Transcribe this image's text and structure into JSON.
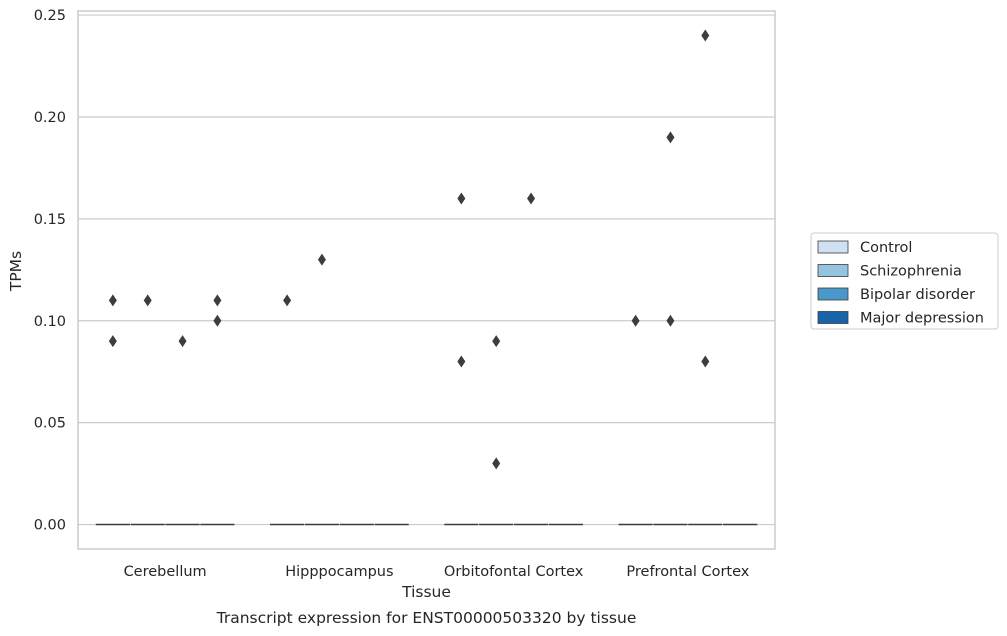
{
  "chart_data": {
    "type": "box",
    "caption": "Transcript expression for ENST00000503320 by tissue",
    "xlabel": "Tissue",
    "ylabel": "TPMs",
    "ylim": [
      -0.012,
      0.252
    ],
    "yticks": [
      0.0,
      0.05,
      0.1,
      0.15,
      0.2,
      0.25
    ],
    "ytick_labels": [
      "0.00",
      "0.05",
      "0.10",
      "0.15",
      "0.20",
      "0.25"
    ],
    "grid": true,
    "legend_position": "right",
    "categories": [
      "Cerebellum",
      "Hipppocampus",
      "Orbitofontal Cortex",
      "Prefrontal Cortex"
    ],
    "series": [
      {
        "name": "Control",
        "color": "#d0e1f2",
        "boxes": [
          {
            "category": "Cerebellum",
            "median": 0.0,
            "q1": 0.0,
            "q3": 0.0,
            "whisker_low": 0.0,
            "whisker_high": 0.0,
            "outliers": [
              0.09,
              0.11
            ]
          },
          {
            "category": "Hipppocampus",
            "median": 0.0,
            "q1": 0.0,
            "q3": 0.0,
            "whisker_low": 0.0,
            "whisker_high": 0.0,
            "outliers": [
              0.11
            ]
          },
          {
            "category": "Orbitofontal Cortex",
            "median": 0.0,
            "q1": 0.0,
            "q3": 0.0,
            "whisker_low": 0.0,
            "whisker_high": 0.0,
            "outliers": [
              0.08,
              0.16
            ]
          },
          {
            "category": "Prefrontal Cortex",
            "median": 0.0,
            "q1": 0.0,
            "q3": 0.0,
            "whisker_low": 0.0,
            "whisker_high": 0.0,
            "outliers": [
              0.1
            ]
          }
        ]
      },
      {
        "name": "Schizophrenia",
        "color": "#94c4df",
        "boxes": [
          {
            "category": "Cerebellum",
            "median": 0.0,
            "q1": 0.0,
            "q3": 0.0,
            "whisker_low": 0.0,
            "whisker_high": 0.0,
            "outliers": [
              0.11
            ]
          },
          {
            "category": "Hipppocampus",
            "median": 0.0,
            "q1": 0.0,
            "q3": 0.0,
            "whisker_low": 0.0,
            "whisker_high": 0.0,
            "outliers": [
              0.13
            ]
          },
          {
            "category": "Orbitofontal Cortex",
            "median": 0.0,
            "q1": 0.0,
            "q3": 0.0,
            "whisker_low": 0.0,
            "whisker_high": 0.0,
            "outliers": [
              0.03,
              0.09
            ]
          },
          {
            "category": "Prefrontal Cortex",
            "median": 0.0,
            "q1": 0.0,
            "q3": 0.0,
            "whisker_low": 0.0,
            "whisker_high": 0.0,
            "outliers": [
              0.1,
              0.19
            ]
          }
        ]
      },
      {
        "name": "Bipolar disorder",
        "color": "#4a98c9",
        "boxes": [
          {
            "category": "Cerebellum",
            "median": 0.0,
            "q1": 0.0,
            "q3": 0.0,
            "whisker_low": 0.0,
            "whisker_high": 0.0,
            "outliers": [
              0.09
            ]
          },
          {
            "category": "Hipppocampus",
            "median": 0.0,
            "q1": 0.0,
            "q3": 0.0,
            "whisker_low": 0.0,
            "whisker_high": 0.0,
            "outliers": []
          },
          {
            "category": "Orbitofontal Cortex",
            "median": 0.0,
            "q1": 0.0,
            "q3": 0.0,
            "whisker_low": 0.0,
            "whisker_high": 0.0,
            "outliers": [
              0.16
            ]
          },
          {
            "category": "Prefrontal Cortex",
            "median": 0.0,
            "q1": 0.0,
            "q3": 0.0,
            "whisker_low": 0.0,
            "whisker_high": 0.0,
            "outliers": [
              0.08,
              0.24
            ]
          }
        ]
      },
      {
        "name": "Major depression",
        "color": "#1764ab",
        "boxes": [
          {
            "category": "Cerebellum",
            "median": 0.0,
            "q1": 0.0,
            "q3": 0.0,
            "whisker_low": 0.0,
            "whisker_high": 0.0,
            "outliers": [
              0.1,
              0.11
            ]
          },
          {
            "category": "Hipppocampus",
            "median": 0.0,
            "q1": 0.0,
            "q3": 0.0,
            "whisker_low": 0.0,
            "whisker_high": 0.0,
            "outliers": []
          },
          {
            "category": "Orbitofontal Cortex",
            "median": 0.0,
            "q1": 0.0,
            "q3": 0.0,
            "whisker_low": 0.0,
            "whisker_high": 0.0,
            "outliers": []
          },
          {
            "category": "Prefrontal Cortex",
            "median": 0.0,
            "q1": 0.0,
            "q3": 0.0,
            "whisker_low": 0.0,
            "whisker_high": 0.0,
            "outliers": []
          }
        ]
      }
    ],
    "colors": {
      "grid": "#cccccc",
      "frame": "#cccccc",
      "box_edge": "#3d3d3d",
      "outlier": "#3d3d3d"
    }
  }
}
